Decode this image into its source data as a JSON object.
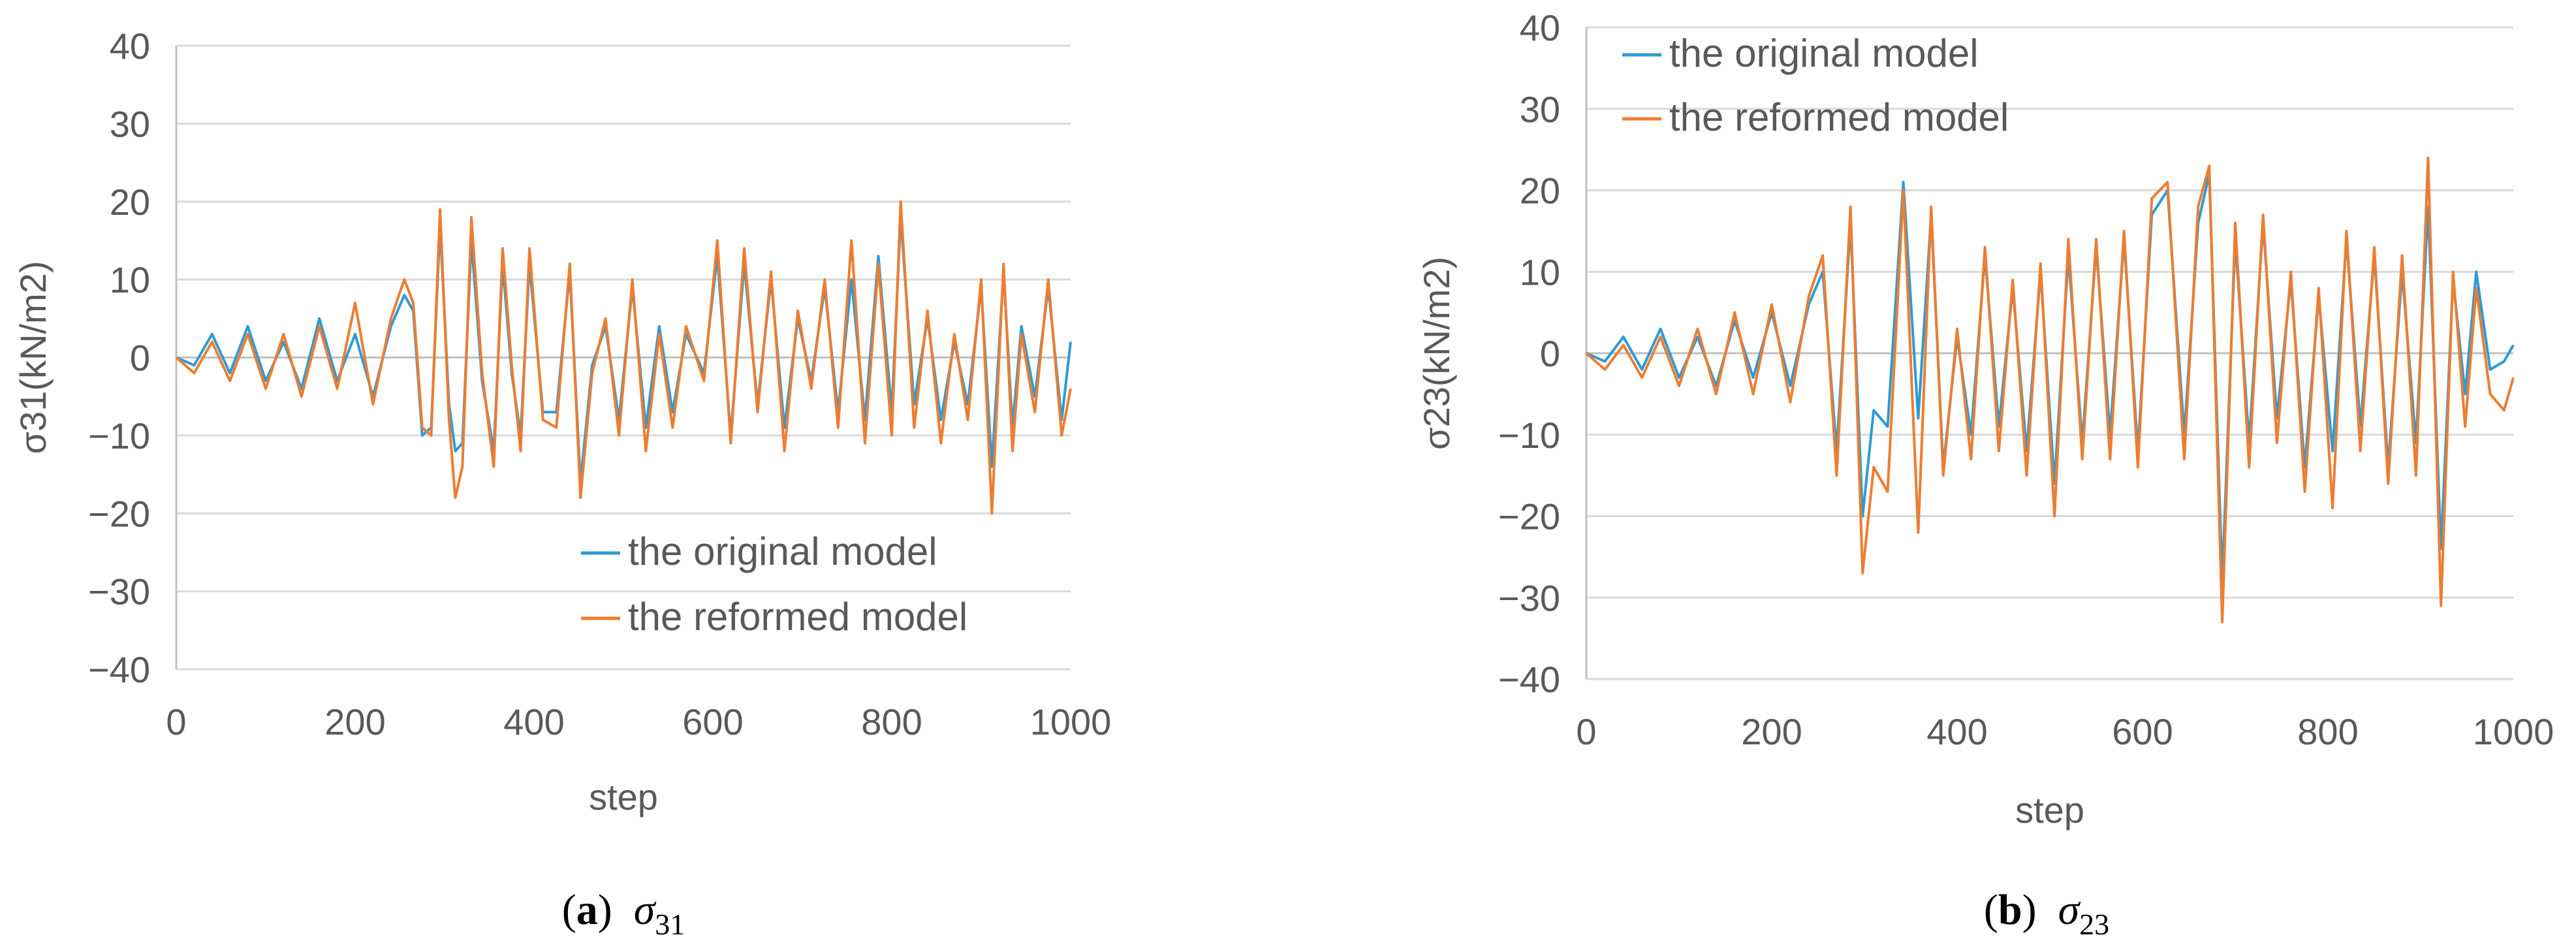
{
  "colors": {
    "original": "#2e9ad6",
    "reformed": "#ed7d31",
    "grid": "#d9d9d9",
    "axis": "#bfbfbf"
  },
  "chart_data": [
    {
      "type": "line",
      "xlabel": "step",
      "ylabel": "σ31(kN/m2)",
      "xlim": [
        0,
        1000
      ],
      "ylim": [
        -40,
        40
      ],
      "xticks": [
        "0",
        "200",
        "400",
        "600",
        "800",
        "1000"
      ],
      "yticks": [
        "40",
        "30",
        "20",
        "10",
        "0",
        "−10",
        "−20",
        "−30",
        "−40"
      ],
      "grid": "horizontal",
      "legend_position": "bottom-right",
      "caption": {
        "letter": "a",
        "symbol": "σ",
        "subscript": "31"
      },
      "series": [
        {
          "name": "the original model",
          "x": [
            0,
            20,
            40,
            60,
            80,
            100,
            120,
            140,
            160,
            180,
            200,
            220,
            240,
            255,
            265,
            275,
            285,
            295,
            305,
            312,
            320,
            330,
            342,
            355,
            365,
            375,
            385,
            395,
            410,
            425,
            440,
            452,
            465,
            480,
            495,
            510,
            525,
            540,
            555,
            570,
            590,
            605,
            620,
            635,
            650,
            665,
            680,
            695,
            710,
            725,
            740,
            755,
            770,
            785,
            800,
            810,
            825,
            840,
            855,
            870,
            885,
            900,
            912,
            925,
            935,
            945,
            960,
            975,
            990,
            1000
          ],
          "y": [
            0,
            -1,
            3,
            -2,
            4,
            -3,
            2,
            -4,
            5,
            -3,
            3,
            -5,
            4,
            8,
            6,
            -10,
            -9,
            17,
            -6,
            -12,
            -11,
            15,
            -3,
            -12,
            12,
            -2,
            -10,
            12,
            -7,
            -7,
            11,
            -16,
            -1,
            4,
            -8,
            9,
            -9,
            4,
            -7,
            3,
            -2,
            13,
            -10,
            12,
            -6,
            10,
            -9,
            5,
            -3,
            9,
            -7,
            10,
            -8,
            13,
            -7,
            18,
            -6,
            5,
            -8,
            2,
            -6,
            9,
            -14,
            11,
            -9,
            4,
            -5,
            9,
            -8,
            2
          ]
        },
        {
          "name": "the reformed model",
          "x": [
            0,
            20,
            40,
            60,
            80,
            100,
            120,
            140,
            160,
            180,
            200,
            220,
            240,
            255,
            265,
            275,
            285,
            295,
            305,
            312,
            320,
            330,
            342,
            355,
            365,
            375,
            385,
            395,
            410,
            425,
            440,
            452,
            465,
            480,
            495,
            510,
            525,
            540,
            555,
            570,
            590,
            605,
            620,
            635,
            650,
            665,
            680,
            695,
            710,
            725,
            740,
            755,
            770,
            785,
            800,
            810,
            825,
            840,
            855,
            870,
            885,
            900,
            912,
            925,
            935,
            945,
            960,
            975,
            990,
            1000
          ],
          "y": [
            0,
            -2,
            2,
            -3,
            3,
            -4,
            3,
            -5,
            4,
            -4,
            7,
            -6,
            5,
            10,
            7,
            -9,
            -10,
            19,
            -8,
            -18,
            -14,
            18,
            -2,
            -14,
            14,
            -1,
            -12,
            14,
            -8,
            -9,
            12,
            -18,
            -2,
            5,
            -10,
            10,
            -12,
            3,
            -9,
            4,
            -3,
            15,
            -11,
            14,
            -7,
            11,
            -12,
            6,
            -4,
            10,
            -9,
            15,
            -11,
            12,
            -10,
            20,
            -9,
            6,
            -11,
            3,
            -8,
            10,
            -20,
            12,
            -12,
            3,
            -7,
            10,
            -10,
            -4
          ]
        }
      ]
    },
    {
      "type": "line",
      "xlabel": "step",
      "ylabel": "σ23(kN/m2)",
      "xlim": [
        0,
        1000
      ],
      "ylim": [
        -40,
        40
      ],
      "xticks": [
        "0",
        "200",
        "400",
        "600",
        "800",
        "1000"
      ],
      "yticks": [
        "40",
        "30",
        "20",
        "10",
        "0",
        "−10",
        "−20",
        "−30",
        "−40"
      ],
      "grid": "horizontal",
      "legend_position": "top-left",
      "caption": {
        "letter": "b",
        "symbol": "σ",
        "subscript": "23"
      },
      "series": [
        {
          "name": "the original model",
          "x": [
            0,
            20,
            40,
            60,
            80,
            100,
            120,
            140,
            160,
            180,
            200,
            220,
            240,
            255,
            270,
            285,
            298,
            310,
            325,
            342,
            358,
            372,
            385,
            400,
            415,
            430,
            445,
            460,
            475,
            490,
            505,
            520,
            535,
            550,
            565,
            580,
            595,
            610,
            627,
            645,
            660,
            672,
            686,
            700,
            715,
            730,
            745,
            760,
            775,
            790,
            805,
            820,
            835,
            850,
            865,
            880,
            895,
            908,
            922,
            935,
            948,
            960,
            975,
            990,
            1000
          ],
          "y": [
            0,
            -1,
            2,
            -2,
            3,
            -3,
            2,
            -4,
            4,
            -3,
            5,
            -4,
            6,
            10,
            -12,
            16,
            -20,
            -7,
            -9,
            21,
            -8,
            17,
            -14,
            2,
            -10,
            12,
            -9,
            8,
            -12,
            10,
            -16,
            12,
            -11,
            13,
            -10,
            14,
            -12,
            17,
            20,
            -10,
            16,
            22,
            -28,
            14,
            -11,
            16,
            -8,
            9,
            -14,
            7,
            -12,
            14,
            -9,
            12,
            -14,
            10,
            -11,
            18,
            -24,
            9,
            -5,
            10,
            -2,
            -1,
            1
          ]
        },
        {
          "name": "the reformed model",
          "x": [
            0,
            20,
            40,
            60,
            80,
            100,
            120,
            140,
            160,
            180,
            200,
            220,
            240,
            255,
            270,
            285,
            298,
            310,
            325,
            342,
            358,
            372,
            385,
            400,
            415,
            430,
            445,
            460,
            475,
            490,
            505,
            520,
            535,
            550,
            565,
            580,
            595,
            610,
            627,
            645,
            660,
            672,
            686,
            700,
            715,
            730,
            745,
            760,
            775,
            790,
            805,
            820,
            835,
            850,
            865,
            880,
            895,
            908,
            922,
            935,
            948,
            960,
            975,
            990,
            1000
          ],
          "y": [
            0,
            -2,
            1,
            -3,
            2,
            -4,
            3,
            -5,
            5,
            -5,
            6,
            -6,
            7,
            12,
            -15,
            18,
            -27,
            -14,
            -17,
            20,
            -22,
            18,
            -15,
            3,
            -13,
            13,
            -12,
            9,
            -15,
            11,
            -20,
            14,
            -13,
            14,
            -13,
            15,
            -14,
            19,
            21,
            -13,
            18,
            23,
            -33,
            16,
            -14,
            17,
            -11,
            10,
            -17,
            8,
            -19,
            15,
            -12,
            13,
            -16,
            12,
            -15,
            24,
            -31,
            10,
            -9,
            8,
            -5,
            -7,
            -3
          ]
        }
      ]
    }
  ]
}
